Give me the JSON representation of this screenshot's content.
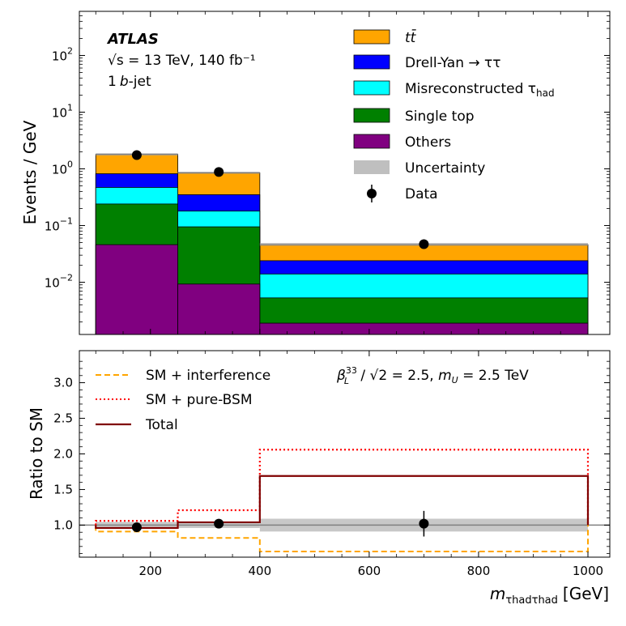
{
  "chart_data": [
    {
      "type": "bar",
      "subtype": "stacked-histogram",
      "yscale": "log",
      "ylabel": "Events / GeV",
      "ylim": [
        0.0012,
        600
      ],
      "ytick_labels": [
        "10^-2",
        "10^-1",
        "10^0",
        "10^1",
        "10^2"
      ],
      "annotations": {
        "experiment": "ATLAS",
        "energy_lumi": "√s = 13 TeV, 140 fb⁻¹",
        "selection_num": "1",
        "selection_b": "b",
        "selection_rest": "-jet"
      },
      "bins": [
        [
          100,
          250
        ],
        [
          250,
          400
        ],
        [
          400,
          1000
        ]
      ],
      "stack_order_bottom_to_top": [
        "Others",
        "Single top",
        "Misreconstructed τ_had",
        "Drell-Yan → ττ",
        "tt̄"
      ],
      "series": [
        {
          "name": "Others",
          "color": "#800080",
          "cumulative_top": [
            0.046,
            0.0093,
            0.0019
          ]
        },
        {
          "name": "Single top",
          "color": "#008000",
          "cumulative_top": [
            0.24,
            0.095,
            0.0053
          ]
        },
        {
          "name": "Misreconstructed τ_had",
          "color": "#00ffff",
          "cumulative_top": [
            0.47,
            0.18,
            0.014
          ]
        },
        {
          "name": "Drell-Yan → ττ",
          "color": "#0000ff",
          "cumulative_top": [
            0.82,
            0.35,
            0.024
          ]
        },
        {
          "name": "tt̄",
          "color": "#ffa500",
          "cumulative_top": [
            1.8,
            0.85,
            0.046
          ]
        }
      ],
      "uncertainty_band": {
        "low": [
          1.72,
          0.82,
          0.044
        ],
        "high": [
          1.88,
          0.89,
          0.049
        ]
      },
      "data": {
        "x": [
          175,
          325,
          700
        ],
        "y": [
          1.75,
          0.88,
          0.047
        ]
      },
      "legend": {
        "placement": "top-right",
        "entries": [
          {
            "key": "ttbar",
            "label": "tt̄",
            "color": "#ffa500",
            "kind": "patch"
          },
          {
            "key": "dy",
            "label_main": "Drell-Yan ",
            "label_arrow": "→ ττ",
            "color": "#0000ff",
            "kind": "patch"
          },
          {
            "key": "misreco",
            "label_main": "Misreconstructed τ",
            "label_sub": "had",
            "color": "#00ffff",
            "kind": "patch"
          },
          {
            "key": "singletop",
            "label": "Single top",
            "color": "#008000",
            "kind": "patch"
          },
          {
            "key": "others",
            "label": "Others",
            "color": "#800080",
            "kind": "patch"
          },
          {
            "key": "unc",
            "label": "Uncertainty",
            "color": "#bfbfbf",
            "kind": "patch"
          },
          {
            "key": "data",
            "label": "Data",
            "color": "#000000",
            "kind": "marker"
          }
        ]
      }
    },
    {
      "type": "line",
      "subtype": "step-ratio",
      "ylabel": "Ratio to SM",
      "xlabel_main": "m",
      "xlabel_sub": "τhadτhad",
      "xlabel_unit": "[GeV]",
      "xlim": [
        70,
        1040
      ],
      "ylim": [
        0.55,
        3.45
      ],
      "xticks": [
        200,
        400,
        600,
        800,
        1000
      ],
      "yticks": [
        1.0,
        1.5,
        2.0,
        2.5,
        3.0
      ],
      "xtick_labels": [
        "200",
        "400",
        "600",
        "800",
        "1000"
      ],
      "ytick_labels": [
        "1.0",
        "1.5",
        "2.0",
        "2.5",
        "3.0"
      ],
      "bin_edges": [
        100,
        250,
        400,
        1000
      ],
      "series": [
        {
          "name": "SM + interference",
          "color": "#ffa500",
          "style": "dashed",
          "values": [
            0.91,
            0.82,
            0.63
          ]
        },
        {
          "name": "SM + pure-BSM",
          "color": "#ff0000",
          "style": "dotted",
          "values": [
            1.06,
            1.21,
            2.06
          ]
        },
        {
          "name": "Total",
          "color": "#800000",
          "style": "solid",
          "values": [
            0.96,
            1.04,
            1.69
          ]
        }
      ],
      "uncertainty_band": {
        "low": [
          0.955,
          0.96,
          0.91
        ],
        "high": [
          1.045,
          1.04,
          1.09
        ]
      },
      "reference_line": 1.0,
      "data": {
        "x": [
          175,
          325,
          700
        ],
        "y": [
          0.97,
          1.02,
          1.02
        ],
        "err_low": [
          0.0,
          0.05,
          0.18
        ],
        "err_high": [
          0.0,
          0.05,
          0.18
        ]
      },
      "annotation": {
        "beta_main": "β",
        "beta_sup": "33",
        "beta_sub": "L",
        "beta_rest": " / √2 = 2.5, ",
        "mu_main": "m",
        "mu_sub": "U",
        "mu_rest": " = 2.5 TeV"
      },
      "legend": {
        "placement": "top-left"
      }
    }
  ]
}
